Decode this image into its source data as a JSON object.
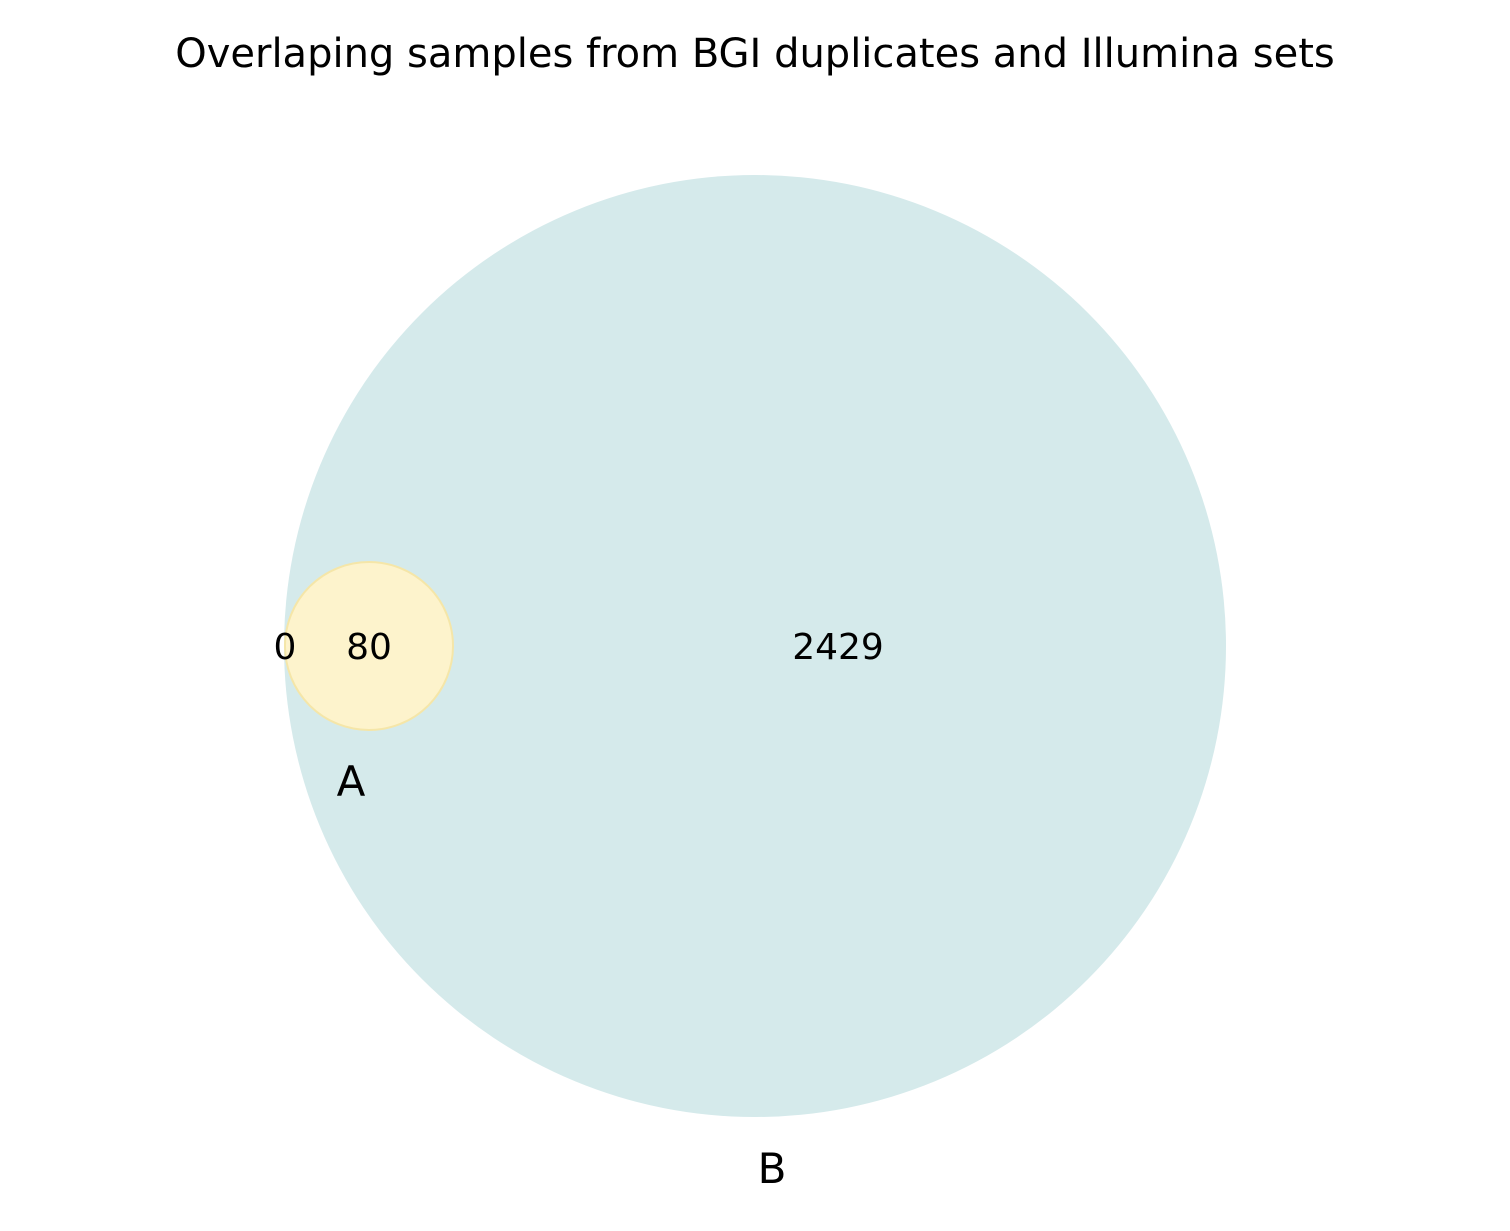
{
  "chart_data": {
    "type": "venn",
    "title": "Overlaping samples from BGI duplicates and Illumina sets",
    "sets": [
      {
        "id": "A",
        "label": "A",
        "color": "#fdf3cc",
        "edge_color": "#f5e6a8"
      },
      {
        "id": "B",
        "label": "B",
        "color": "#d5eaeb",
        "edge_color": "#d5eaeb"
      }
    ],
    "regions": {
      "A_only": "0",
      "A_and_B": "80",
      "B_only": "2429"
    }
  }
}
